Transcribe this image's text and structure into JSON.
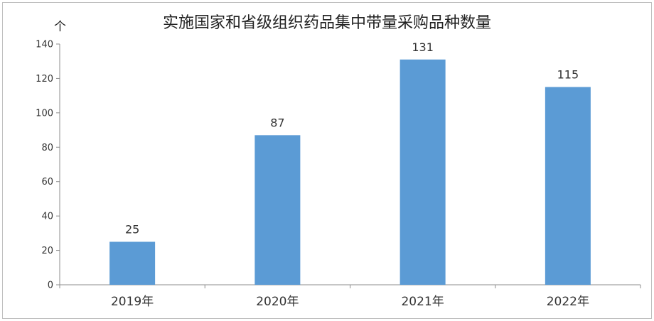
{
  "chart_data": {
    "type": "bar",
    "title": "实施国家和省级组织药品集中带量采购品种数量",
    "ylabel": "个",
    "xlabel": "",
    "categories": [
      "2019年",
      "2020年",
      "2021年",
      "2022年"
    ],
    "values": [
      25,
      87,
      131,
      115
    ],
    "ylim": [
      0,
      140
    ],
    "yticks": [
      0,
      20,
      40,
      60,
      80,
      100,
      120,
      140
    ],
    "bar_color": "#5b9bd5",
    "grid": false,
    "legend": "none"
  }
}
